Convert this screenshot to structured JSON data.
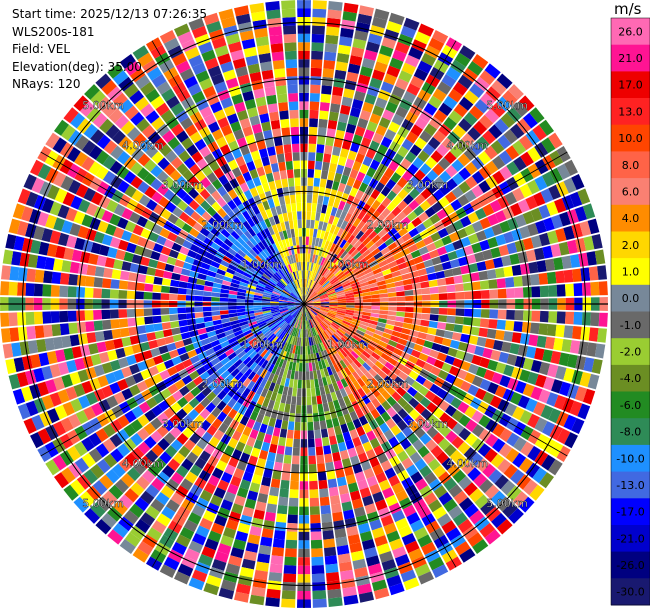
{
  "header": {
    "start_time": "Start time: 2025/12/13 07:26:35",
    "station": "WLS200s-181",
    "field": "Field: VEL",
    "elevation": "Elevation(deg): 35.00",
    "nrays": "NRays: 120"
  },
  "chart_data": {
    "type": "heatmap",
    "projection": "polar (PPI)",
    "n_rays": 120,
    "range_rings_km": [
      1.0,
      2.0,
      3.0,
      4.0,
      5.0
    ],
    "range_ring_labels": [
      "1.00km",
      "2.00km",
      "3.00km",
      "4.00km",
      "5.00km"
    ],
    "max_range_km": 5.4,
    "colorbar": {
      "unit": "m/s",
      "ticks": [
        "26.0",
        "21.0",
        "17.0",
        "13.0",
        "10.0",
        "8.0",
        "6.0",
        "4.0",
        "2.0",
        "1.0",
        "0.0",
        "-1.0",
        "-2.0",
        "-4.0",
        "-6.0",
        "-8.0",
        "-10.0",
        "-13.0",
        "-17.0",
        "-21.0",
        "-26.0",
        "-30.0"
      ],
      "colors": [
        "#ff69b4",
        "#ff1493",
        "#ee0000",
        "#ff2222",
        "#ff4500",
        "#ff6347",
        "#fa8072",
        "#ff8c00",
        "#ffd700",
        "#ffff00",
        "#778899",
        "#696969",
        "#9acd32",
        "#6b8e23",
        "#228b22",
        "#2e8b57",
        "#1e90ff",
        "#4169e1",
        "#0000ff",
        "#0000cd",
        "#000080",
        "#191970"
      ]
    }
  }
}
